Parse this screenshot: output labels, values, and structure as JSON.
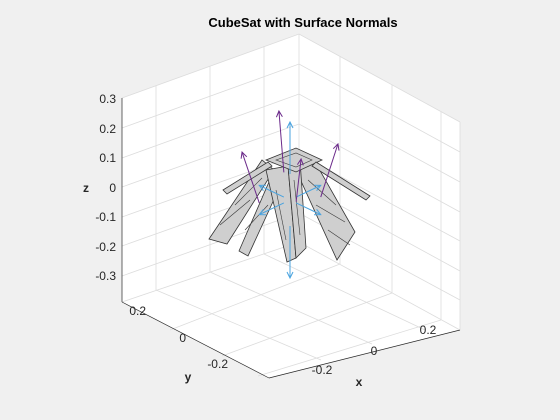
{
  "chart_data": {
    "type": "3d-patch-with-quiver",
    "title": "CubeSat with Surface Normals",
    "xlabel": "x",
    "ylabel": "y",
    "zlabel": "z",
    "xlim": [
      -0.35,
      0.35
    ],
    "ylim": [
      -0.35,
      0.35
    ],
    "zlim": [
      -0.3,
      0.3
    ],
    "xticks": [
      "-0.2",
      "0",
      "0.2"
    ],
    "yticks": [
      "-0.2",
      "0",
      "0.2"
    ],
    "zticks": [
      "0.3",
      "0.2",
      "0.1",
      "0",
      "-0.1",
      "-0.2",
      "-0.3"
    ],
    "grid": true,
    "box": true,
    "colors": {
      "panel_fill": "#cfcfcf",
      "panel_edge": "#333333",
      "normal_body": "#4aa3df",
      "normal_panel": "#6b2a8a"
    },
    "series": [
      {
        "name": "",
        "kind": "cube-body-normals",
        "values": [
          {
            "x": 0,
            "y": 0,
            "z": 0.1,
            "u": 0,
            "v": 0,
            "w": 1
          },
          {
            "x": 0,
            "y": 0,
            "z": -0.1,
            "u": 0,
            "v": 0,
            "w": -1
          },
          {
            "x": 0.05,
            "y": 0,
            "z": 0,
            "u": 1,
            "v": 0,
            "w": 0
          },
          {
            "x": -0.05,
            "y": 0,
            "z": 0,
            "u": -1,
            "v": 0,
            "w": 0
          },
          {
            "x": 0,
            "y": 0.05,
            "z": 0,
            "u": 0,
            "v": 1,
            "w": 0
          },
          {
            "x": 0,
            "y": -0.05,
            "z": 0,
            "u": 0,
            "v": -1,
            "w": 0
          }
        ]
      },
      {
        "name": "",
        "kind": "solar-panel-normals",
        "values": [
          {
            "x": 0.15,
            "y": 0.1,
            "z": 0.05,
            "u": 0.5,
            "v": 0.3,
            "w": 1
          },
          {
            "x": -0.15,
            "y": -0.1,
            "z": 0.05,
            "u": -0.5,
            "v": -0.3,
            "w": 1
          },
          {
            "x": 0.1,
            "y": -0.15,
            "z": 0.0,
            "u": 0.3,
            "v": -0.4,
            "w": 1
          },
          {
            "x": -0.1,
            "y": 0.15,
            "z": 0.0,
            "u": -0.3,
            "v": 0.4,
            "w": 1
          }
        ]
      }
    ]
  }
}
